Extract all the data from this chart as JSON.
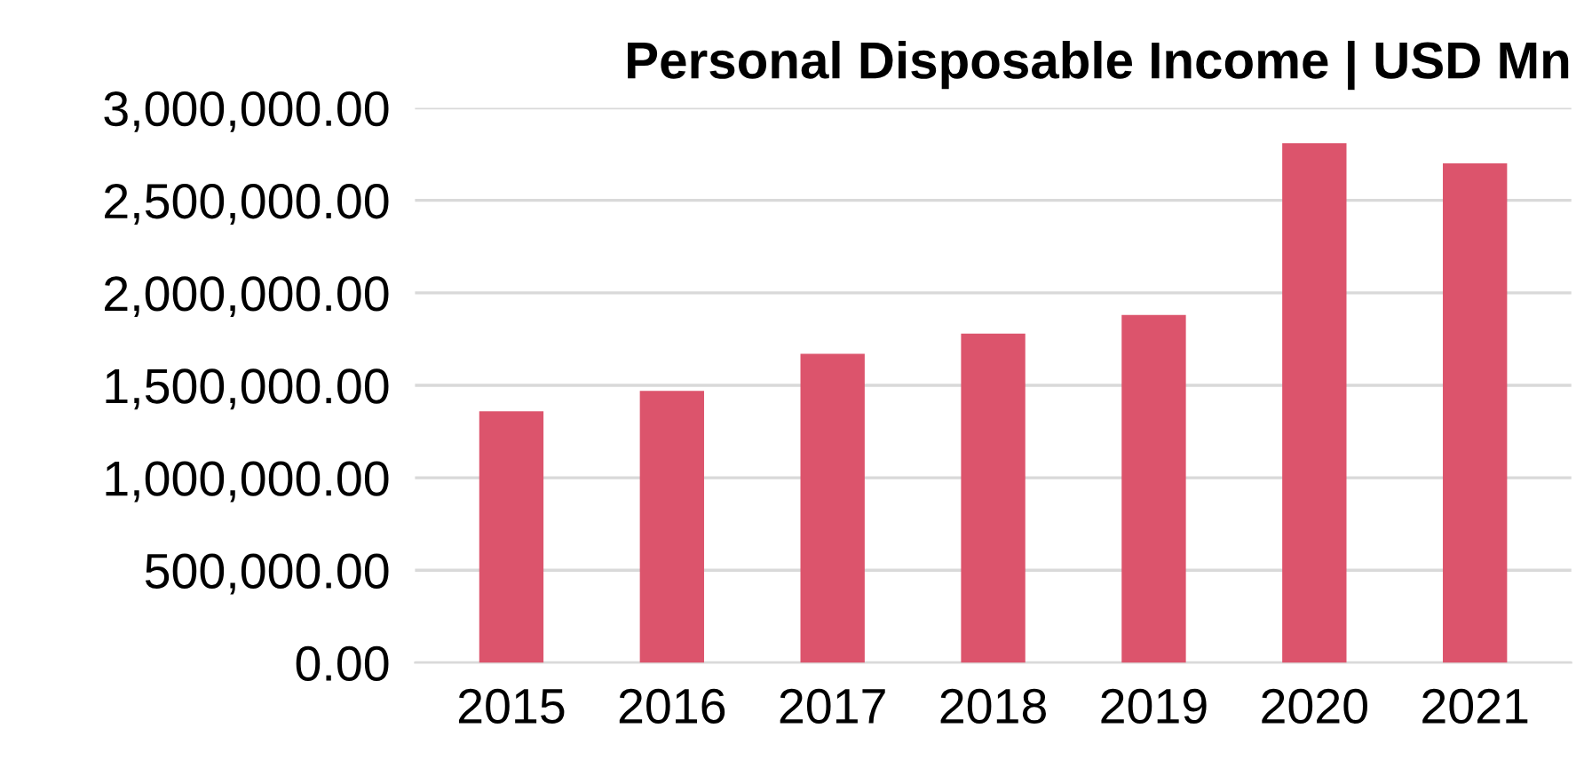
{
  "chart_data": {
    "type": "bar",
    "title": "Personal Disposable Income | USD Mn",
    "categories": [
      "2015",
      "2016",
      "2017",
      "2018",
      "2019",
      "2020",
      "2021"
    ],
    "values": [
      1360000,
      1470000,
      1670000,
      1780000,
      1880000,
      2810000,
      2700000
    ],
    "color": "#dc546c",
    "ylim": [
      0,
      3000000
    ],
    "yticks": [
      {
        "value": 0,
        "label": "0.00"
      },
      {
        "value": 500000,
        "label": "500,000.00"
      },
      {
        "value": 1000000,
        "label": "1,000,000.00"
      },
      {
        "value": 1500000,
        "label": "1,500,000.00"
      },
      {
        "value": 2000000,
        "label": "2,000,000.00"
      },
      {
        "value": 2500000,
        "label": "2,500,000.00"
      },
      {
        "value": 3000000,
        "label": "3,000,000.00"
      }
    ],
    "grid": "y"
  }
}
